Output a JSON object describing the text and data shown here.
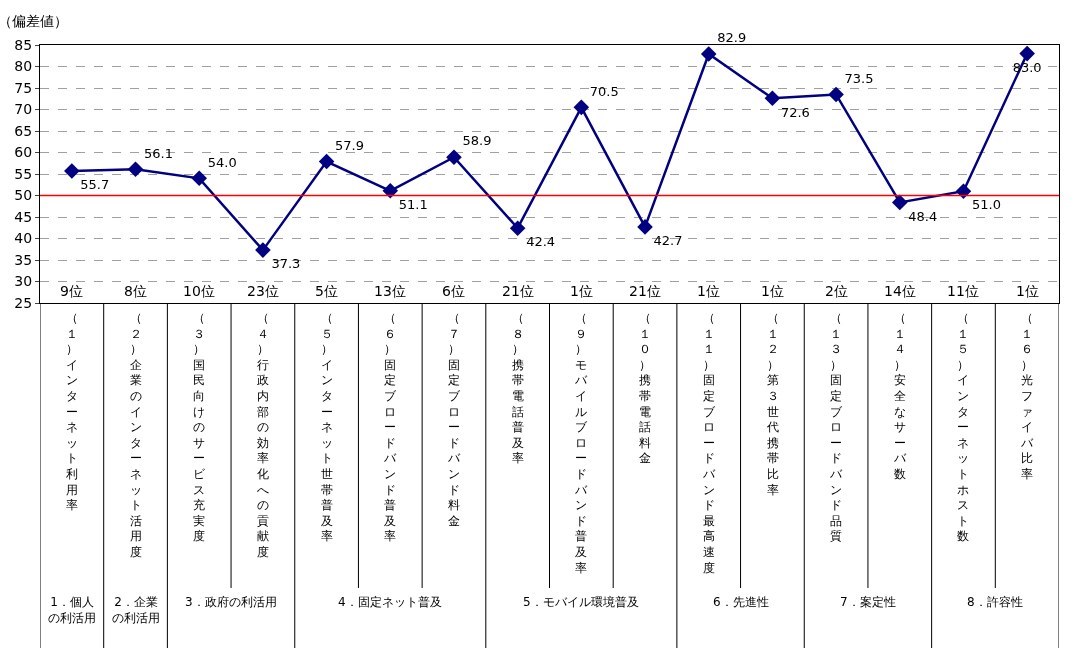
{
  "chart_data": {
    "type": "line",
    "ylabel": "（偏差値）",
    "categories": [
      "（１）インターネット利用率",
      "（２）企業のインターネット活用度",
      "（３）国民向けのサービス充実度",
      "（４）行政内部の効率化への貢献度",
      "（５）インターネット世帯普及率",
      "（６）固定ブロードバンド普及率",
      "（７）固定ブロードバンド料金",
      "（８）携帯電話普及率",
      "（９）モバイルブロードバンド普及率",
      "（１０）携帯電話料金",
      "（１１）固定ブロードバンド最高速度",
      "（１２）第３世代携帯比率",
      "（１３）固定ブロードバンド品質",
      "（１４）安全なサーバ数",
      "（１５）インターネットホスト数",
      "（１６）光ファイバ比率"
    ],
    "series": [
      {
        "color": "#000080",
        "values": [
          55.7,
          56.1,
          54.0,
          37.3,
          57.9,
          51.1,
          58.9,
          42.4,
          70.5,
          42.7,
          82.9,
          72.6,
          73.5,
          48.4,
          51.0,
          83.0
        ],
        "value_labels": [
          "55.7",
          "56.1",
          "54.0",
          "37.3",
          "57.9",
          "51.1",
          "58.9",
          "42.4",
          "70.5",
          "42.7",
          "82.9",
          "72.6",
          "73.5",
          "48.4",
          "51.0",
          "83.0"
        ]
      }
    ],
    "marker": "diamond",
    "line_style": "solid",
    "grid": "y",
    "ylim": [
      25,
      85
    ],
    "yticks": [
      25,
      30,
      35,
      40,
      45,
      50,
      55,
      60,
      65,
      70,
      75,
      80,
      85
    ],
    "ref_lines": [
      {
        "axis": "y",
        "value": 50,
        "color": "#ff0000"
      }
    ],
    "annotations": [
      "9位",
      "8位",
      "10位",
      "23位",
      "5位",
      "13位",
      "6位",
      "21位",
      "1位",
      "21位",
      "1位",
      "1位",
      "2位",
      "14位",
      "11位",
      "1位",
      "1．個人の利活用",
      "2．企業の利活用",
      "3．政府の利活用",
      "4．固定ネット普及",
      "5．モバイル環境普及",
      "6．先進性",
      "7．案定性",
      "8．許容性"
    ]
  }
}
